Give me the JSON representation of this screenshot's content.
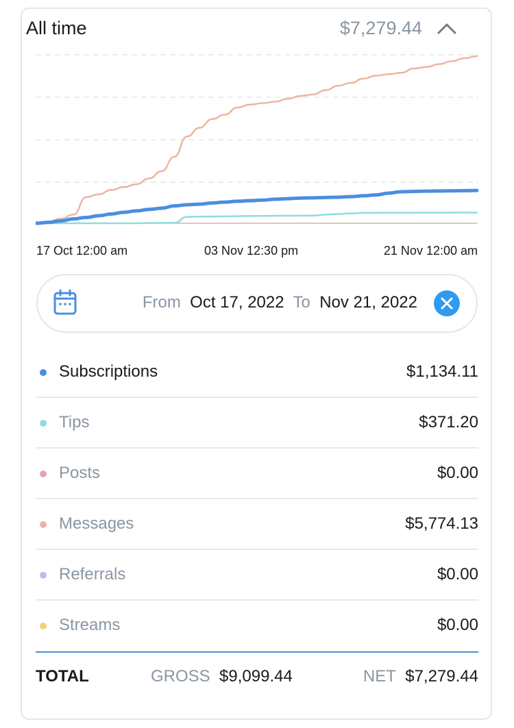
{
  "header": {
    "title": "All time",
    "amount": "$7,279.44",
    "toggle_icon": "chevron-up-icon"
  },
  "chart_data": {
    "type": "line",
    "x_labels": [
      "17 Oct 12:00 am",
      "03 Nov 12:30 pm",
      "21 Nov 12:00 am"
    ],
    "y_axis_labels_visible": false,
    "grid": "horizontal dashed",
    "x": [
      0,
      1,
      2,
      3,
      4,
      5,
      6,
      7,
      8,
      9,
      10,
      11,
      12,
      13,
      14,
      15,
      16,
      17,
      18,
      19,
      20,
      21,
      22,
      23,
      24,
      25,
      26,
      27,
      28,
      29,
      30,
      31,
      32,
      33,
      34,
      35
    ],
    "series": [
      {
        "key": "messages",
        "color": "#eab6a0",
        "values": [
          0,
          60,
          160,
          300,
          900,
          1000,
          1150,
          1250,
          1350,
          1550,
          1800,
          2300,
          3000,
          3300,
          3600,
          3750,
          4000,
          4100,
          4150,
          4200,
          4300,
          4400,
          4450,
          4600,
          4750,
          4850,
          5000,
          5100,
          5150,
          5200,
          5350,
          5400,
          5500,
          5600,
          5700,
          5774
        ]
      },
      {
        "key": "subscriptions",
        "color": "#4a8ee0",
        "values": [
          0,
          30,
          80,
          150,
          200,
          260,
          320,
          380,
          430,
          480,
          520,
          600,
          640,
          660,
          700,
          730,
          760,
          780,
          800,
          830,
          850,
          870,
          880,
          890,
          900,
          920,
          950,
          980,
          1040,
          1090,
          1100,
          1110,
          1115,
          1120,
          1128,
          1134
        ]
      },
      {
        "key": "tips",
        "color": "#8fdbe0",
        "values": [
          0,
          0,
          0,
          0,
          0,
          0,
          0,
          0,
          0,
          10,
          12,
          15,
          220,
          230,
          235,
          240,
          245,
          250,
          255,
          258,
          260,
          262,
          265,
          300,
          320,
          340,
          360,
          362,
          363,
          364,
          365,
          366,
          367,
          368,
          369,
          371
        ]
      },
      {
        "key": "posts",
        "color": "#e7a2b9",
        "values": [
          0,
          0,
          0,
          0,
          0,
          0,
          0,
          0,
          0,
          0,
          0,
          0,
          0,
          0,
          0,
          0,
          0,
          0,
          0,
          0,
          0,
          0,
          0,
          0,
          0,
          0,
          0,
          0,
          0,
          0,
          0,
          0,
          0,
          0,
          0,
          0
        ]
      }
    ]
  },
  "range": {
    "from_label": "From",
    "from_date": "Oct 17, 2022",
    "to_label": "To",
    "to_date": "Nov 21, 2022"
  },
  "rows": [
    {
      "label": "Subscriptions",
      "value": "$1,134.11",
      "color": "#4a8ee0"
    },
    {
      "label": "Tips",
      "value": "$371.20",
      "color": "#8fdbe0"
    },
    {
      "label": "Posts",
      "value": "$0.00",
      "color": "#e7a2b9"
    },
    {
      "label": "Messages",
      "value": "$5,774.13",
      "color": "#eab6a0"
    },
    {
      "label": "Referrals",
      "value": "$0.00",
      "color": "#c9b9e6"
    },
    {
      "label": "Streams",
      "value": "$0.00",
      "color": "#f5d27a"
    }
  ],
  "totals": {
    "label": "TOTAL",
    "gross_label": "GROSS",
    "gross_value": "$9,099.44",
    "net_label": "NET",
    "net_value": "$7,279.44"
  }
}
